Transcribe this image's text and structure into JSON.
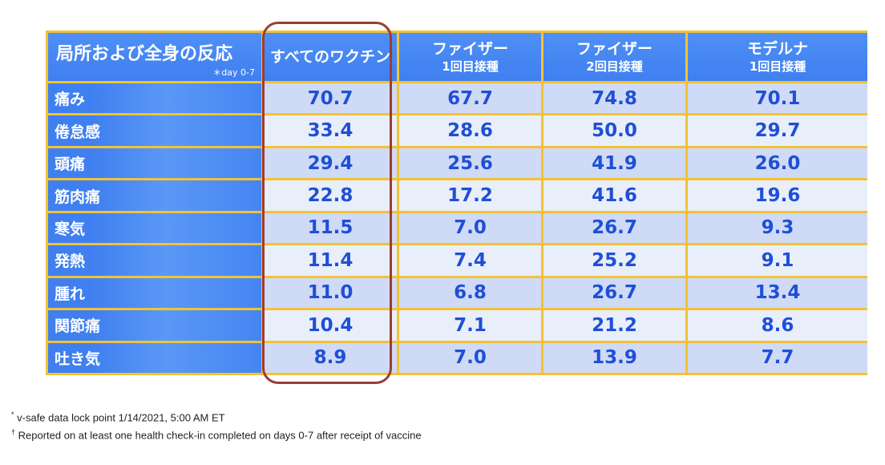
{
  "table": {
    "header_first": "局所および全身の反応",
    "header_note": "＊day 0-7",
    "columns": [
      {
        "l1": "すべてのワクチン",
        "l2": ""
      },
      {
        "l1": "ファイザー",
        "l2": "1回目接種"
      },
      {
        "l1": "ファイザー",
        "l2": "2回目接種"
      },
      {
        "l1": "モデルナ",
        "l2": "1回目接種"
      }
    ],
    "rows": [
      {
        "label": "痛み",
        "values": [
          "70.7",
          "67.7",
          "74.8",
          "70.1"
        ]
      },
      {
        "label": "倦怠感",
        "values": [
          "33.4",
          "28.6",
          "50.0",
          "29.7"
        ]
      },
      {
        "label": "頭痛",
        "values": [
          "29.4",
          "25.6",
          "41.9",
          "26.0"
        ]
      },
      {
        "label": "筋肉痛",
        "values": [
          "22.8",
          "17.2",
          "41.6",
          "19.6"
        ]
      },
      {
        "label": "寒気",
        "values": [
          "11.5",
          "7.0",
          "26.7",
          "9.3"
        ]
      },
      {
        "label": "発熱",
        "values": [
          "11.4",
          "7.4",
          "25.2",
          "9.1"
        ]
      },
      {
        "label": "腫れ",
        "values": [
          "11.0",
          "6.8",
          "26.7",
          "13.4"
        ]
      },
      {
        "label": "関節痛",
        "values": [
          "10.4",
          "7.1",
          "21.2",
          "8.6"
        ]
      },
      {
        "label": "吐き気",
        "values": [
          "8.9",
          "7.0",
          "13.9",
          "7.7"
        ]
      }
    ]
  },
  "footnotes": [
    {
      "mark": "*",
      "text": "v-safe data lock point 1/14/2021, 5:00 AM ET"
    },
    {
      "mark": "†",
      "text": "Reported on at least one health check-in completed on days 0-7 after receipt of vaccine"
    }
  ],
  "colors": {
    "header_blue": "#3f7ff0",
    "value_blue": "#1f4fd6",
    "grid_gold": "#f3c234",
    "highlight_red": "#9b3d35"
  }
}
